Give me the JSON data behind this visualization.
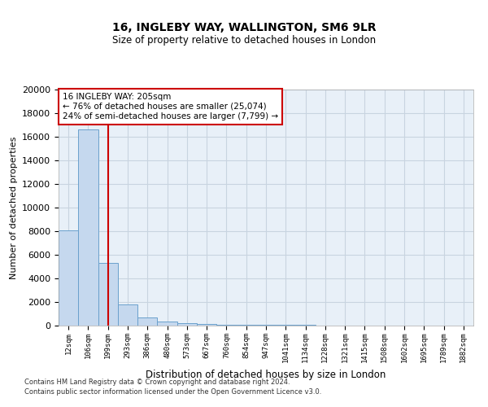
{
  "title1": "16, INGLEBY WAY, WALLINGTON, SM6 9LR",
  "title2": "Size of property relative to detached houses in London",
  "xlabel": "Distribution of detached houses by size in London",
  "ylabel": "Number of detached properties",
  "bar_color": "#c5d8ee",
  "bar_edge_color": "#6aa0cc",
  "categories": [
    "12sqm",
    "106sqm",
    "199sqm",
    "293sqm",
    "386sqm",
    "480sqm",
    "573sqm",
    "667sqm",
    "760sqm",
    "854sqm",
    "947sqm",
    "1041sqm",
    "1134sqm",
    "1228sqm",
    "1321sqm",
    "1415sqm",
    "1508sqm",
    "1602sqm",
    "1695sqm",
    "1789sqm",
    "1882sqm"
  ],
  "values": [
    8100,
    16600,
    5300,
    1800,
    700,
    350,
    200,
    130,
    90,
    70,
    55,
    45,
    35,
    25,
    20,
    18,
    15,
    12,
    10,
    8,
    7
  ],
  "vline_x": 2,
  "vline_color": "#cc0000",
  "annotation_text": "16 INGLEBY WAY: 205sqm\n← 76% of detached houses are smaller (25,074)\n24% of semi-detached houses are larger (7,799) →",
  "ylim": [
    0,
    20000
  ],
  "yticks": [
    0,
    2000,
    4000,
    6000,
    8000,
    10000,
    12000,
    14000,
    16000,
    18000,
    20000
  ],
  "background_color": "#ffffff",
  "grid_color": "#c8d4e0",
  "axes_bg": "#e8f0f8",
  "footer1": "Contains HM Land Registry data © Crown copyright and database right 2024.",
  "footer2": "Contains public sector information licensed under the Open Government Licence v3.0."
}
